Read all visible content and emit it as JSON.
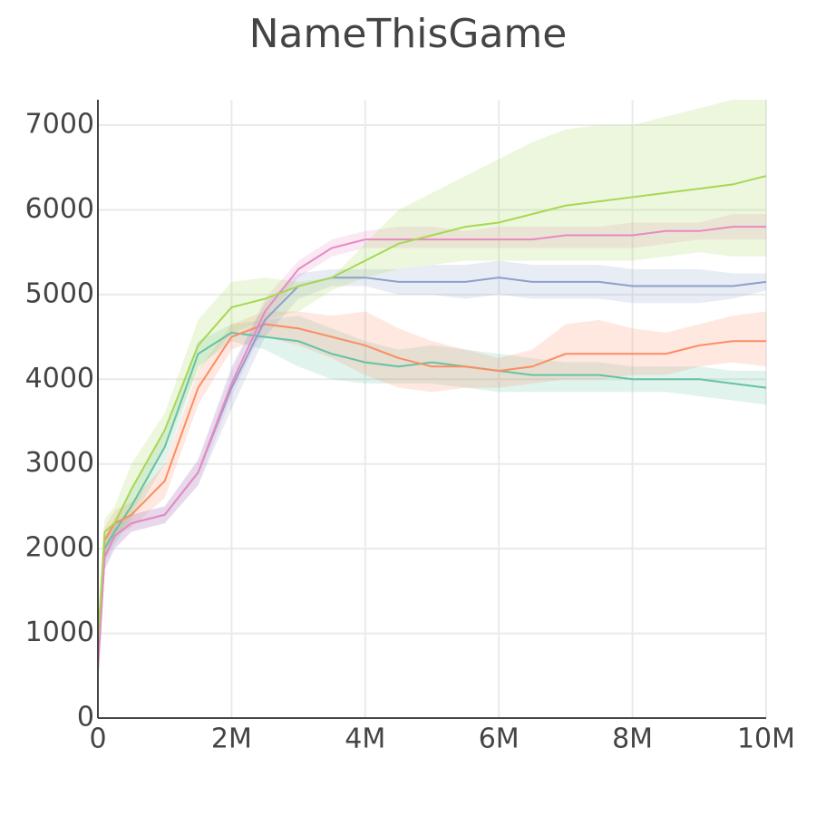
{
  "chart_data": {
    "type": "line",
    "title": "NameThisGame",
    "x": [
      0,
      100000,
      250000,
      500000,
      1000000,
      1500000,
      2000000,
      2500000,
      3000000,
      3500000,
      4000000,
      4500000,
      5000000,
      5500000,
      6000000,
      6500000,
      7000000,
      7500000,
      8000000,
      8500000,
      9000000,
      9500000,
      10000000
    ],
    "xlim": [
      0,
      10000000
    ],
    "xticks": [
      0,
      {
        "value": 2000000,
        "label": "2M"
      },
      {
        "value": 4000000,
        "label": "4M"
      },
      {
        "value": 6000000,
        "label": "6M"
      },
      {
        "value": 8000000,
        "label": "8M"
      },
      {
        "value": 10000000,
        "label": "10M"
      }
    ],
    "ylim": [
      0,
      7300
    ],
    "yticks": [
      0,
      1000,
      2000,
      3000,
      4000,
      5000,
      6000,
      7000
    ],
    "grid": true,
    "band_opacity": 0.2,
    "series": [
      {
        "color": "#66c2a5",
        "values": [
          800,
          2000,
          2200,
          2500,
          3200,
          4300,
          4550,
          4500,
          4450,
          4300,
          4200,
          4150,
          4200,
          4150,
          4100,
          4050,
          4050,
          4050,
          4000,
          4000,
          4000,
          3950,
          3900
        ],
        "upper": [
          900,
          2150,
          2350,
          2700,
          3400,
          4450,
          4650,
          4700,
          4750,
          4600,
          4450,
          4350,
          4400,
          4350,
          4300,
          4250,
          4200,
          4200,
          4150,
          4150,
          4150,
          4100,
          4100
        ],
        "lower": [
          700,
          1850,
          2050,
          2350,
          3000,
          4150,
          4450,
          4350,
          4150,
          4000,
          3950,
          3950,
          3950,
          3900,
          3850,
          3850,
          3850,
          3850,
          3850,
          3850,
          3800,
          3750,
          3700
        ]
      },
      {
        "color": "#fc8d62",
        "values": [
          700,
          2100,
          2300,
          2400,
          2800,
          3900,
          4500,
          4650,
          4600,
          4500,
          4400,
          4250,
          4150,
          4150,
          4100,
          4150,
          4300,
          4300,
          4300,
          4300,
          4400,
          4450,
          4450
        ],
        "upper": [
          800,
          2250,
          2450,
          2550,
          3000,
          4100,
          4650,
          4800,
          4800,
          4750,
          4800,
          4600,
          4450,
          4350,
          4250,
          4350,
          4650,
          4700,
          4600,
          4550,
          4650,
          4750,
          4800
        ],
        "lower": [
          600,
          1950,
          2150,
          2250,
          2600,
          3700,
          4350,
          4500,
          4400,
          4250,
          4050,
          3900,
          3850,
          3900,
          3900,
          3950,
          4000,
          4000,
          4050,
          4050,
          4150,
          4200,
          4150
        ]
      },
      {
        "color": "#8da0cb",
        "values": [
          600,
          1900,
          2150,
          2300,
          2400,
          2900,
          3900,
          4700,
          5100,
          5200,
          5200,
          5150,
          5150,
          5150,
          5200,
          5150,
          5150,
          5150,
          5100,
          5100,
          5100,
          5100,
          5150
        ],
        "upper": [
          700,
          2050,
          2300,
          2400,
          2500,
          3050,
          4150,
          4900,
          5250,
          5300,
          5300,
          5300,
          5350,
          5350,
          5400,
          5350,
          5350,
          5350,
          5300,
          5300,
          5300,
          5250,
          5250
        ],
        "lower": [
          500,
          1750,
          2000,
          2200,
          2300,
          2750,
          3650,
          4500,
          4950,
          5100,
          5100,
          5000,
          5000,
          4950,
          5000,
          4950,
          4950,
          4950,
          4900,
          4900,
          4900,
          4950,
          5050
        ]
      },
      {
        "color": "#e78ac3",
        "values": [
          550,
          1900,
          2150,
          2300,
          2400,
          2900,
          3950,
          4800,
          5300,
          5550,
          5650,
          5650,
          5650,
          5650,
          5650,
          5650,
          5700,
          5700,
          5700,
          5750,
          5750,
          5800,
          5800
        ],
        "upper": [
          650,
          2050,
          2300,
          2400,
          2500,
          3050,
          4100,
          4950,
          5400,
          5650,
          5750,
          5800,
          5800,
          5750,
          5800,
          5800,
          5800,
          5800,
          5850,
          5850,
          5850,
          5950,
          5950
        ],
        "lower": [
          450,
          1750,
          2000,
          2200,
          2300,
          2750,
          3800,
          4650,
          5200,
          5450,
          5550,
          5550,
          5550,
          5550,
          5550,
          5550,
          5550,
          5550,
          5550,
          5600,
          5650,
          5650,
          5650
        ]
      },
      {
        "color": "#a6d854",
        "values": [
          900,
          2200,
          2300,
          2700,
          3400,
          4400,
          4850,
          4950,
          5100,
          5200,
          5400,
          5600,
          5700,
          5800,
          5850,
          5950,
          6050,
          6100,
          6150,
          6200,
          6250,
          6300,
          6400
        ],
        "upper": [
          1100,
          2350,
          2500,
          3000,
          3600,
          4700,
          5150,
          5200,
          5150,
          5200,
          5600,
          6000,
          6200,
          6400,
          6600,
          6800,
          6950,
          7000,
          7000,
          7100,
          7200,
          7300,
          7300
        ],
        "lower": [
          700,
          2050,
          2100,
          2400,
          3200,
          4100,
          4550,
          4700,
          4800,
          5050,
          5200,
          5300,
          5350,
          5400,
          5400,
          5400,
          5400,
          5400,
          5400,
          5450,
          5500,
          5450,
          5450
        ]
      }
    ]
  }
}
